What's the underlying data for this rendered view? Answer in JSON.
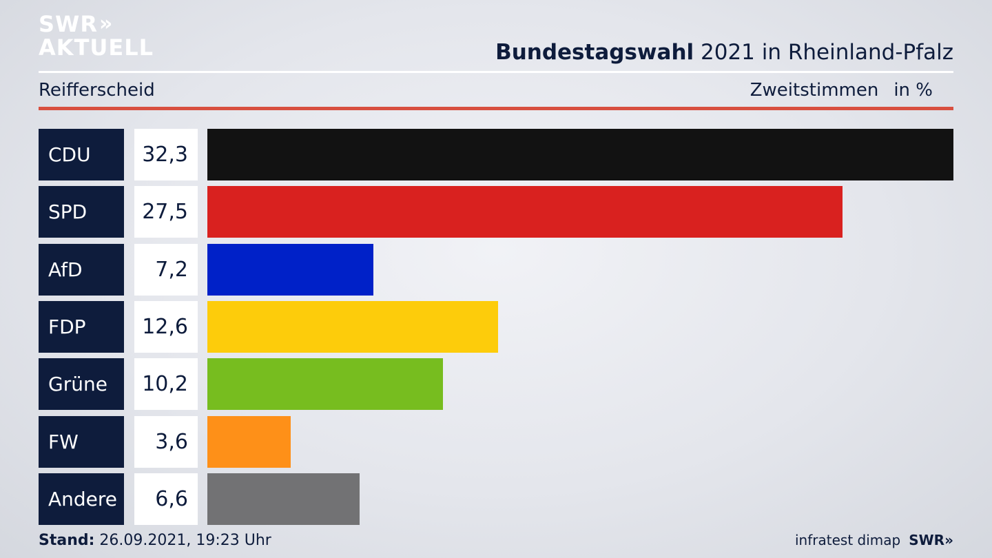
{
  "logo": {
    "line1": "SWR",
    "line1_suffix": "»",
    "line2": "AKTUELL"
  },
  "header": {
    "title_bold": "Bundestagswahl",
    "title_rest": " 2021 in Rheinland-Pfalz",
    "region": "Reifferscheid",
    "measure": "Zweitstimmen",
    "unit": "in %"
  },
  "chart_data": {
    "type": "bar",
    "orientation": "horizontal",
    "categories": [
      "CDU",
      "SPD",
      "AfD",
      "FDP",
      "Grüne",
      "FW",
      "Andere"
    ],
    "values": [
      32.3,
      27.5,
      7.2,
      12.6,
      10.2,
      3.6,
      6.6
    ],
    "value_labels": [
      "32,3",
      "27,5",
      "7,2",
      "12,6",
      "10,2",
      "3,6",
      "6,6"
    ],
    "colors": [
      "#121212",
      "#d9211f",
      "#0021c8",
      "#fdcc0b",
      "#77bd1f",
      "#fe9018",
      "#727274"
    ],
    "xlim": [
      0,
      32.3
    ]
  },
  "footer": {
    "stand_label": "Stand:",
    "stand_value": " 26.09.2021, 19:23 Uhr",
    "source": "infratest dimap",
    "brand": "SWR»"
  }
}
